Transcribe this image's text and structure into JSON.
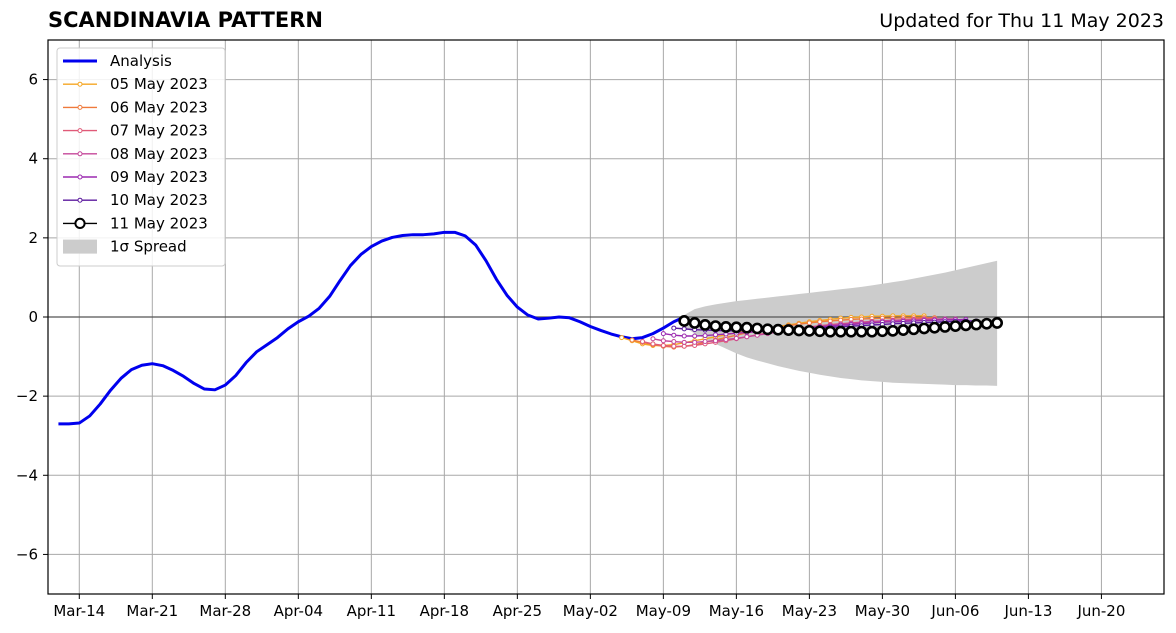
{
  "header": {
    "title": "SCANDINAVIA PATTERN",
    "updated": "Updated for Thu 11 May 2023"
  },
  "chart_data": {
    "type": "line",
    "title": "SCANDINAVIA PATTERN",
    "xlabel": "",
    "ylabel": "",
    "xlim": [
      "2023-03-11",
      "2023-06-26"
    ],
    "ylim": [
      -7,
      7
    ],
    "yticks": [
      -6,
      -4,
      -2,
      0,
      2,
      4,
      6
    ],
    "ytick_labels": [
      "−6",
      "−4",
      "−2",
      "0",
      "2",
      "4",
      "6"
    ],
    "xticks": [
      "2023-03-14",
      "2023-03-21",
      "2023-03-28",
      "2023-04-04",
      "2023-04-11",
      "2023-04-18",
      "2023-04-25",
      "2023-05-02",
      "2023-05-09",
      "2023-05-16",
      "2023-05-23",
      "2023-05-30",
      "2023-06-06",
      "2023-06-13",
      "2023-06-20"
    ],
    "xtick_labels": [
      "Mar-14",
      "Mar-21",
      "Mar-28",
      "Apr-04",
      "Apr-11",
      "Apr-18",
      "Apr-25",
      "May-02",
      "May-09",
      "May-16",
      "May-23",
      "May-30",
      "Jun-06",
      "Jun-13",
      "Jun-20"
    ],
    "grid": true,
    "legend_position": "top-left",
    "zero_line": 0,
    "analysis": {
      "name": "Analysis",
      "color": "#0000ee",
      "x": [
        "2023-03-12",
        "2023-03-13",
        "2023-03-14",
        "2023-03-15",
        "2023-03-16",
        "2023-03-17",
        "2023-03-18",
        "2023-03-19",
        "2023-03-20",
        "2023-03-21",
        "2023-03-22",
        "2023-03-23",
        "2023-03-24",
        "2023-03-25",
        "2023-03-26",
        "2023-03-27",
        "2023-03-28",
        "2023-03-29",
        "2023-03-30",
        "2023-03-31",
        "2023-04-01",
        "2023-04-02",
        "2023-04-03",
        "2023-04-04",
        "2023-04-05",
        "2023-04-06",
        "2023-04-07",
        "2023-04-08",
        "2023-04-09",
        "2023-04-10",
        "2023-04-11",
        "2023-04-12",
        "2023-04-13",
        "2023-04-14",
        "2023-04-15",
        "2023-04-16",
        "2023-04-17",
        "2023-04-18",
        "2023-04-19",
        "2023-04-20",
        "2023-04-21",
        "2023-04-22",
        "2023-04-23",
        "2023-04-24",
        "2023-04-25",
        "2023-04-26",
        "2023-04-27",
        "2023-04-28",
        "2023-04-29",
        "2023-04-30",
        "2023-05-01",
        "2023-05-02",
        "2023-05-03",
        "2023-05-04",
        "2023-05-05",
        "2023-05-06",
        "2023-05-07",
        "2023-05-08",
        "2023-05-09",
        "2023-05-10",
        "2023-05-11"
      ],
      "y": [
        -2.7,
        -2.7,
        -2.68,
        -2.5,
        -2.2,
        -1.85,
        -1.55,
        -1.33,
        -1.22,
        -1.18,
        -1.23,
        -1.35,
        -1.5,
        -1.68,
        -1.82,
        -1.84,
        -1.72,
        -1.48,
        -1.15,
        -0.88,
        -0.7,
        -0.52,
        -0.3,
        -0.12,
        0.02,
        0.22,
        0.52,
        0.92,
        1.3,
        1.58,
        1.78,
        1.92,
        2.01,
        2.06,
        2.08,
        2.08,
        2.1,
        2.14,
        2.14,
        2.05,
        1.82,
        1.42,
        0.95,
        0.55,
        0.25,
        0.05,
        -0.05,
        -0.03,
        0.0,
        -0.02,
        -0.12,
        -0.24,
        -0.34,
        -0.43,
        -0.5,
        -0.55,
        -0.52,
        -0.42,
        -0.28,
        -0.12,
        0.0
      ]
    },
    "series": [
      {
        "name": "05 May 2023",
        "color": "#f5a623",
        "x_start": "2023-05-05",
        "values": [
          -0.52,
          -0.6,
          -0.68,
          -0.72,
          -0.72,
          -0.7,
          -0.65,
          -0.6,
          -0.55,
          -0.5,
          -0.45,
          -0.4,
          -0.36,
          -0.32,
          -0.28,
          -0.24,
          -0.2,
          -0.16,
          -0.12,
          -0.09,
          -0.06,
          -0.03,
          -0.01,
          0.0,
          0.02,
          0.02,
          0.03,
          0.03,
          0.03,
          0.03
        ]
      },
      {
        "name": "06 May 2023",
        "color": "#ef7a3c",
        "x_start": "2023-05-06",
        "values": [
          -0.58,
          -0.64,
          -0.7,
          -0.74,
          -0.76,
          -0.74,
          -0.7,
          -0.64,
          -0.58,
          -0.52,
          -0.46,
          -0.4,
          -0.35,
          -0.3,
          -0.26,
          -0.22,
          -0.18,
          -0.15,
          -0.12,
          -0.1,
          -0.08,
          -0.06,
          -0.05,
          -0.04,
          -0.03,
          -0.03,
          -0.02,
          -0.02,
          -0.02,
          -0.02
        ]
      },
      {
        "name": "07 May 2023",
        "color": "#e05a78",
        "x_start": "2023-05-07",
        "values": [
          -0.62,
          -0.68,
          -0.72,
          -0.74,
          -0.74,
          -0.72,
          -0.68,
          -0.64,
          -0.6,
          -0.55,
          -0.5,
          -0.45,
          -0.4,
          -0.36,
          -0.32,
          -0.28,
          -0.25,
          -0.22,
          -0.19,
          -0.17,
          -0.15,
          -0.13,
          -0.11,
          -0.1,
          -0.08,
          -0.07,
          -0.06,
          -0.05,
          -0.05,
          -0.05
        ]
      },
      {
        "name": "08 May 2023",
        "color": "#c4479a",
        "x_start": "2023-05-08",
        "values": [
          -0.55,
          -0.6,
          -0.62,
          -0.64,
          -0.64,
          -0.62,
          -0.6,
          -0.57,
          -0.54,
          -0.5,
          -0.46,
          -0.42,
          -0.38,
          -0.34,
          -0.3,
          -0.27,
          -0.24,
          -0.21,
          -0.18,
          -0.16,
          -0.14,
          -0.12,
          -0.1,
          -0.09,
          -0.08,
          -0.07,
          -0.06,
          -0.06,
          -0.05,
          -0.05
        ]
      },
      {
        "name": "09 May 2023",
        "color": "#9b2ab0",
        "x_start": "2023-05-09",
        "values": [
          -0.42,
          -0.46,
          -0.48,
          -0.48,
          -0.47,
          -0.45,
          -0.43,
          -0.41,
          -0.39,
          -0.37,
          -0.35,
          -0.33,
          -0.31,
          -0.29,
          -0.27,
          -0.25,
          -0.23,
          -0.21,
          -0.19,
          -0.17,
          -0.15,
          -0.13,
          -0.12,
          -0.11,
          -0.1,
          -0.09,
          -0.08,
          -0.07,
          -0.07,
          -0.06
        ]
      },
      {
        "name": "10 May 2023",
        "color": "#5b1a9e",
        "x_start": "2023-05-10",
        "values": [
          -0.28,
          -0.3,
          -0.32,
          -0.33,
          -0.34,
          -0.35,
          -0.35,
          -0.35,
          -0.34,
          -0.33,
          -0.32,
          -0.31,
          -0.3,
          -0.28,
          -0.27,
          -0.26,
          -0.25,
          -0.23,
          -0.22,
          -0.2,
          -0.19,
          -0.17,
          -0.16,
          -0.15,
          -0.14,
          -0.13,
          -0.12,
          -0.11,
          -0.1,
          -0.1
        ]
      },
      {
        "name": "11 May 2023",
        "color": "#000000",
        "x_start": "2023-05-11",
        "values": [
          -0.1,
          -0.15,
          -0.2,
          -0.23,
          -0.25,
          -0.26,
          -0.27,
          -0.29,
          -0.31,
          -0.32,
          -0.33,
          -0.34,
          -0.35,
          -0.36,
          -0.37,
          -0.37,
          -0.37,
          -0.37,
          -0.37,
          -0.36,
          -0.35,
          -0.33,
          -0.31,
          -0.29,
          -0.27,
          -0.25,
          -0.23,
          -0.21,
          -0.19,
          -0.17,
          -0.15
        ]
      }
    ],
    "spread": {
      "name": "1σ Spread",
      "color": "#cccccc",
      "x_start": "2023-05-11",
      "upper": [
        0.05,
        0.2,
        0.27,
        0.32,
        0.36,
        0.4,
        0.43,
        0.46,
        0.49,
        0.52,
        0.55,
        0.58,
        0.61,
        0.64,
        0.67,
        0.7,
        0.73,
        0.76,
        0.8,
        0.84,
        0.88,
        0.92,
        0.97,
        1.02,
        1.07,
        1.12,
        1.18,
        1.24,
        1.3,
        1.36,
        1.42
      ],
      "lower": [
        -0.25,
        -0.42,
        -0.55,
        -0.68,
        -0.8,
        -0.92,
        -1.02,
        -1.1,
        -1.17,
        -1.24,
        -1.3,
        -1.36,
        -1.41,
        -1.46,
        -1.5,
        -1.54,
        -1.57,
        -1.6,
        -1.62,
        -1.64,
        -1.66,
        -1.67,
        -1.68,
        -1.69,
        -1.7,
        -1.71,
        -1.72,
        -1.72,
        -1.73,
        -1.73,
        -1.74
      ]
    },
    "legend": [
      {
        "label": "Analysis",
        "kind": "analysis",
        "color": "#0000ee"
      },
      {
        "label": "05 May 2023",
        "kind": "small",
        "color": "#f5a623"
      },
      {
        "label": "06 May 2023",
        "kind": "small",
        "color": "#ef7a3c"
      },
      {
        "label": "07 May 2023",
        "kind": "small",
        "color": "#e05a78"
      },
      {
        "label": "08 May 2023",
        "kind": "small",
        "color": "#c4479a"
      },
      {
        "label": "09 May 2023",
        "kind": "small",
        "color": "#9b2ab0"
      },
      {
        "label": "10 May 2023",
        "kind": "small",
        "color": "#5b1a9e"
      },
      {
        "label": "11 May 2023",
        "kind": "big",
        "color": "#000000"
      },
      {
        "label": "1σ Spread",
        "kind": "patch",
        "color": "#cccccc"
      }
    ]
  }
}
